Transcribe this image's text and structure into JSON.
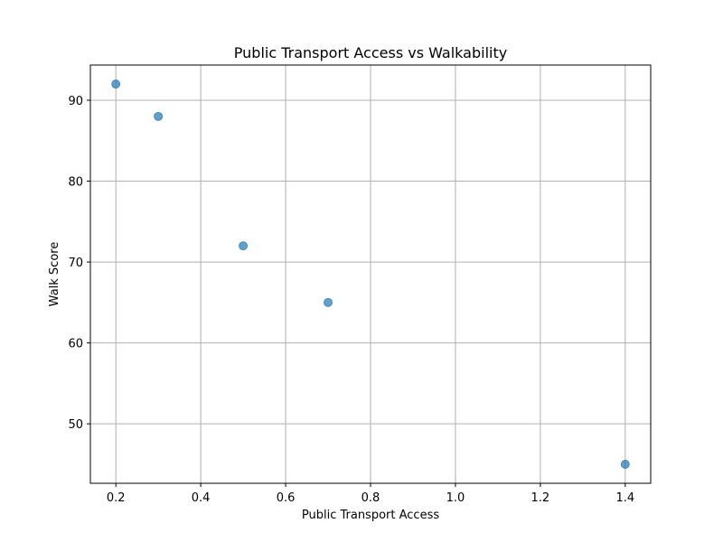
{
  "chart_data": {
    "type": "scatter",
    "title": "Public Transport Access vs Walkability",
    "xlabel": "Public Transport Access",
    "ylabel": "Walk Score",
    "xlim": [
      0.14,
      1.46
    ],
    "ylim": [
      42.65,
      94.35
    ],
    "xticks": [
      0.2,
      0.4,
      0.6,
      0.8,
      1.0,
      1.2,
      1.4
    ],
    "xtick_labels": [
      "0.2",
      "0.4",
      "0.6",
      "0.8",
      "1.0",
      "1.2",
      "1.4"
    ],
    "yticks": [
      50,
      60,
      70,
      80,
      90
    ],
    "ytick_labels": [
      "50",
      "60",
      "70",
      "80",
      "90"
    ],
    "grid": true,
    "marker_color": "#1f77b4",
    "marker_alpha": 0.7,
    "points": [
      {
        "x": 0.2,
        "y": 92
      },
      {
        "x": 0.3,
        "y": 88
      },
      {
        "x": 0.5,
        "y": 72
      },
      {
        "x": 0.7,
        "y": 65
      },
      {
        "x": 1.4,
        "y": 45
      }
    ]
  }
}
